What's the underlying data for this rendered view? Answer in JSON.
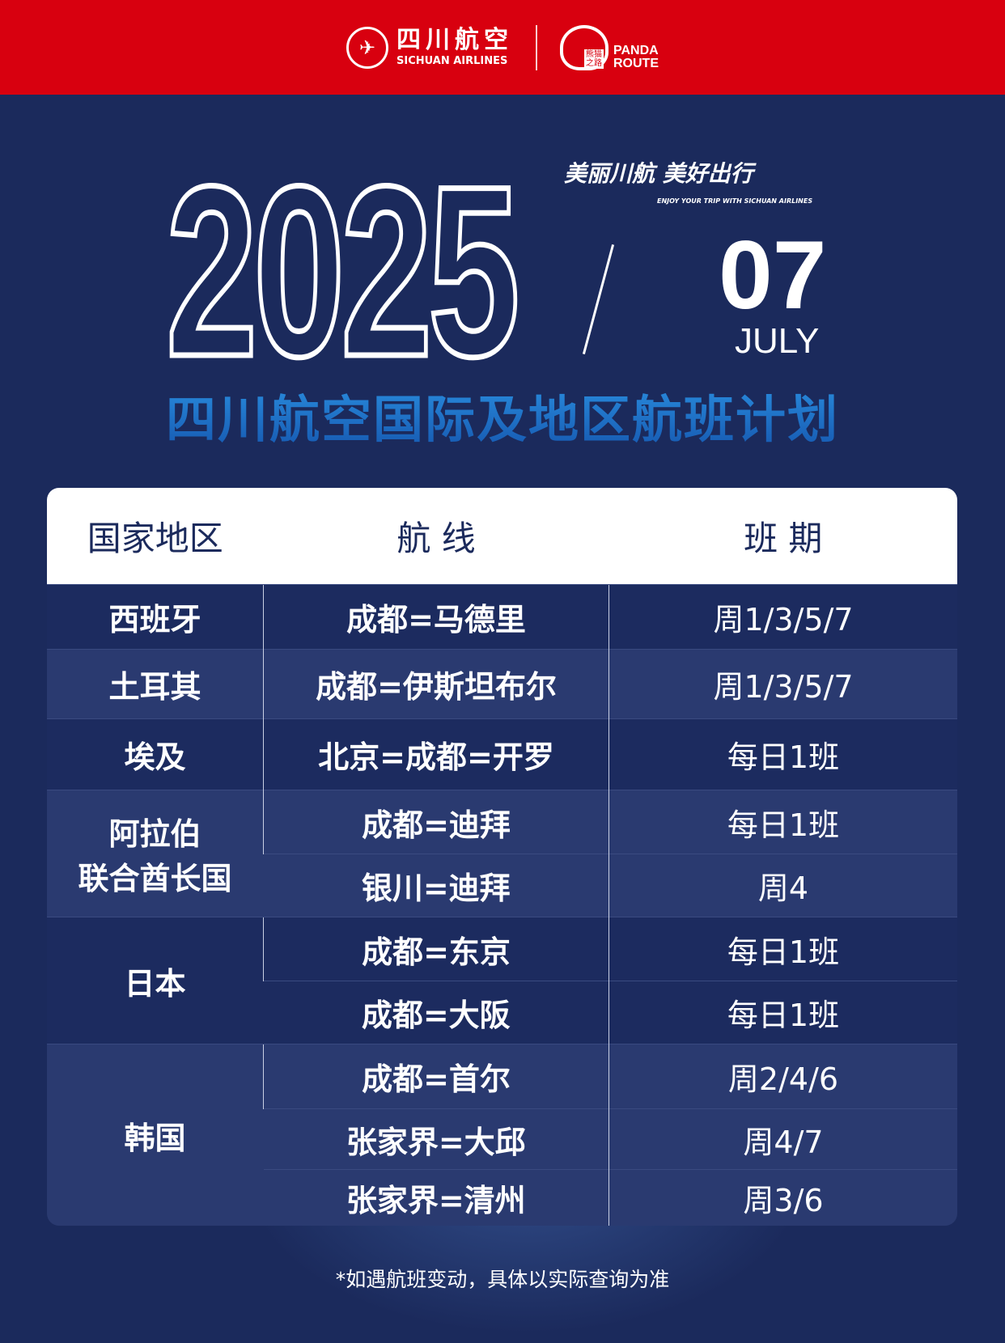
{
  "header": {
    "airline_cn": "四川航空",
    "airline_en": "SICHUAN AIRLINES",
    "route_en1": "PANDA",
    "route_en2": "ROUTE",
    "route_cn": "熊猫之路"
  },
  "hero": {
    "year": "2025",
    "month": "07",
    "month_name": "JULY",
    "slogan": "美丽川航 美好出行",
    "slogan_en": "ENJOY YOUR TRIP WITH SICHUAN AIRLINES",
    "title": "四川航空国际及地区航班计划"
  },
  "colors": {
    "brand_red": "#d8000f",
    "navy": "#1b2a5c",
    "title_blue": "#2a8fe0"
  },
  "table": {
    "headers": [
      "国家地区",
      "航 线",
      "班 期"
    ],
    "groups": [
      {
        "country": "西班牙",
        "routes": [
          {
            "route": "成都=马德里",
            "schedule": "周1/3/5/7"
          }
        ]
      },
      {
        "country": "土耳其",
        "routes": [
          {
            "route": "成都=伊斯坦布尔",
            "schedule": "周1/3/5/7"
          }
        ]
      },
      {
        "country": "埃及",
        "routes": [
          {
            "route": "北京=成都=开罗",
            "schedule": "每日1班"
          }
        ]
      },
      {
        "country": "阿拉伯\n联合酋长国",
        "routes": [
          {
            "route": "成都=迪拜",
            "schedule": "每日1班"
          },
          {
            "route": "银川=迪拜",
            "schedule": "周4"
          }
        ]
      },
      {
        "country": "日本",
        "routes": [
          {
            "route": "成都=东京",
            "schedule": "每日1班"
          },
          {
            "route": "成都=大阪",
            "schedule": "每日1班"
          }
        ]
      },
      {
        "country": "韩国",
        "routes": [
          {
            "route": "成都=首尔",
            "schedule": "周2/4/6"
          },
          {
            "route": "张家界=大邱",
            "schedule": "周4/7"
          },
          {
            "route": "张家界=清州",
            "schedule": "周3/6"
          }
        ]
      }
    ]
  },
  "footer": {
    "note": "*如遇航班变动，具体以实际查询为准"
  }
}
